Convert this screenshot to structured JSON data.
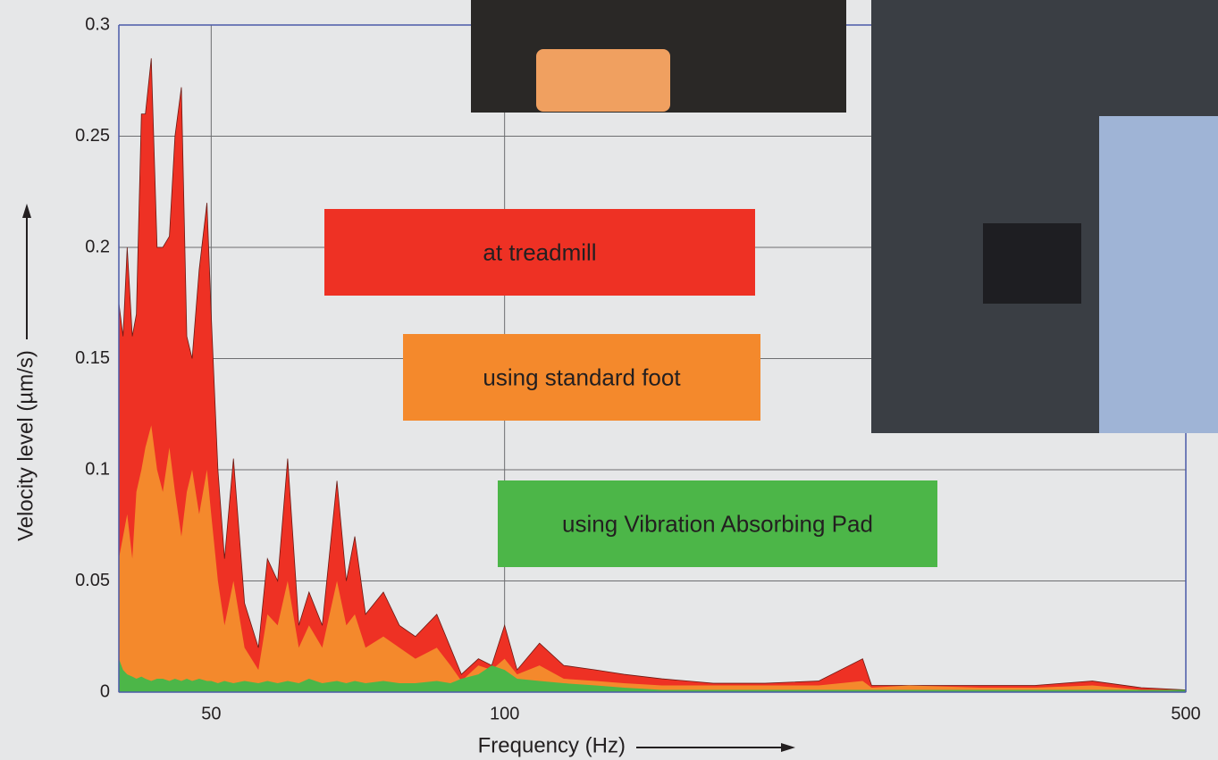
{
  "chart_data": {
    "type": "area",
    "x_label": "Frequency (Hz)",
    "y_label": "Velocity level (µm/s)",
    "xscale": "log",
    "grid": true,
    "xlim": [
      40.2,
      500
    ],
    "xticks": [
      50,
      100,
      500
    ],
    "ylim": [
      0,
      0.3
    ],
    "yticks": [
      0,
      0.05,
      0.1,
      0.15,
      0.2,
      0.25,
      0.3
    ],
    "x": [
      40.2,
      40.6,
      41.0,
      41.5,
      41.9,
      42.4,
      42.8,
      43.4,
      44.0,
      44.6,
      45.3,
      45.9,
      46.6,
      47.2,
      47.8,
      48.6,
      49.5,
      50.0,
      50.8,
      51.6,
      52.7,
      54.1,
      55.9,
      57.1,
      58.5,
      59.9,
      61.5,
      63.0,
      65.0,
      67.3,
      68.8,
      70.2,
      72.0,
      75.1,
      78.0,
      81.0,
      85.2,
      88.0,
      90.3,
      94.0,
      97.0,
      100.0,
      103.0,
      108.6,
      115.0,
      124.0,
      132.6,
      145.0,
      163.7,
      185.0,
      210.0,
      233.0,
      238.0,
      260.0,
      308.0,
      350.0,
      401.0,
      450.0,
      500.0
    ],
    "series": [
      {
        "name": "at treadmill",
        "color": "#ee3124",
        "values": [
          0.175,
          0.16,
          0.2,
          0.16,
          0.17,
          0.26,
          0.26,
          0.285,
          0.2,
          0.2,
          0.205,
          0.25,
          0.272,
          0.16,
          0.15,
          0.19,
          0.22,
          0.17,
          0.1,
          0.06,
          0.105,
          0.04,
          0.02,
          0.06,
          0.05,
          0.105,
          0.03,
          0.045,
          0.03,
          0.095,
          0.05,
          0.07,
          0.035,
          0.045,
          0.03,
          0.025,
          0.035,
          0.02,
          0.008,
          0.015,
          0.012,
          0.03,
          0.01,
          0.022,
          0.012,
          0.01,
          0.008,
          0.006,
          0.004,
          0.004,
          0.005,
          0.015,
          0.003,
          0.003,
          0.003,
          0.003,
          0.005,
          0.002,
          0.001
        ]
      },
      {
        "name": "using standard foot",
        "color": "#f4892c",
        "values": [
          0.06,
          0.07,
          0.08,
          0.06,
          0.09,
          0.1,
          0.11,
          0.12,
          0.1,
          0.09,
          0.11,
          0.09,
          0.07,
          0.09,
          0.1,
          0.08,
          0.1,
          0.08,
          0.05,
          0.03,
          0.05,
          0.02,
          0.01,
          0.035,
          0.03,
          0.05,
          0.02,
          0.03,
          0.02,
          0.05,
          0.03,
          0.035,
          0.02,
          0.025,
          0.02,
          0.015,
          0.02,
          0.012,
          0.005,
          0.012,
          0.01,
          0.015,
          0.008,
          0.012,
          0.006,
          0.005,
          0.004,
          0.003,
          0.003,
          0.003,
          0.003,
          0.005,
          0.002,
          0.003,
          0.002,
          0.002,
          0.003,
          0.001,
          0.001
        ]
      },
      {
        "name": "using Vibration Absorbing Pad",
        "color": "#4cb648",
        "values": [
          0.015,
          0.01,
          0.008,
          0.007,
          0.006,
          0.007,
          0.006,
          0.005,
          0.006,
          0.006,
          0.005,
          0.006,
          0.005,
          0.006,
          0.005,
          0.006,
          0.005,
          0.005,
          0.004,
          0.005,
          0.004,
          0.005,
          0.004,
          0.005,
          0.004,
          0.005,
          0.004,
          0.006,
          0.004,
          0.005,
          0.004,
          0.005,
          0.004,
          0.005,
          0.004,
          0.004,
          0.005,
          0.004,
          0.006,
          0.008,
          0.012,
          0.01,
          0.006,
          0.005,
          0.004,
          0.003,
          0.002,
          0.001,
          0.001,
          0.001,
          0.001,
          0.001,
          0.001,
          0.001,
          0.001,
          0.001,
          0.001,
          0.001,
          0.001
        ]
      }
    ]
  }
}
